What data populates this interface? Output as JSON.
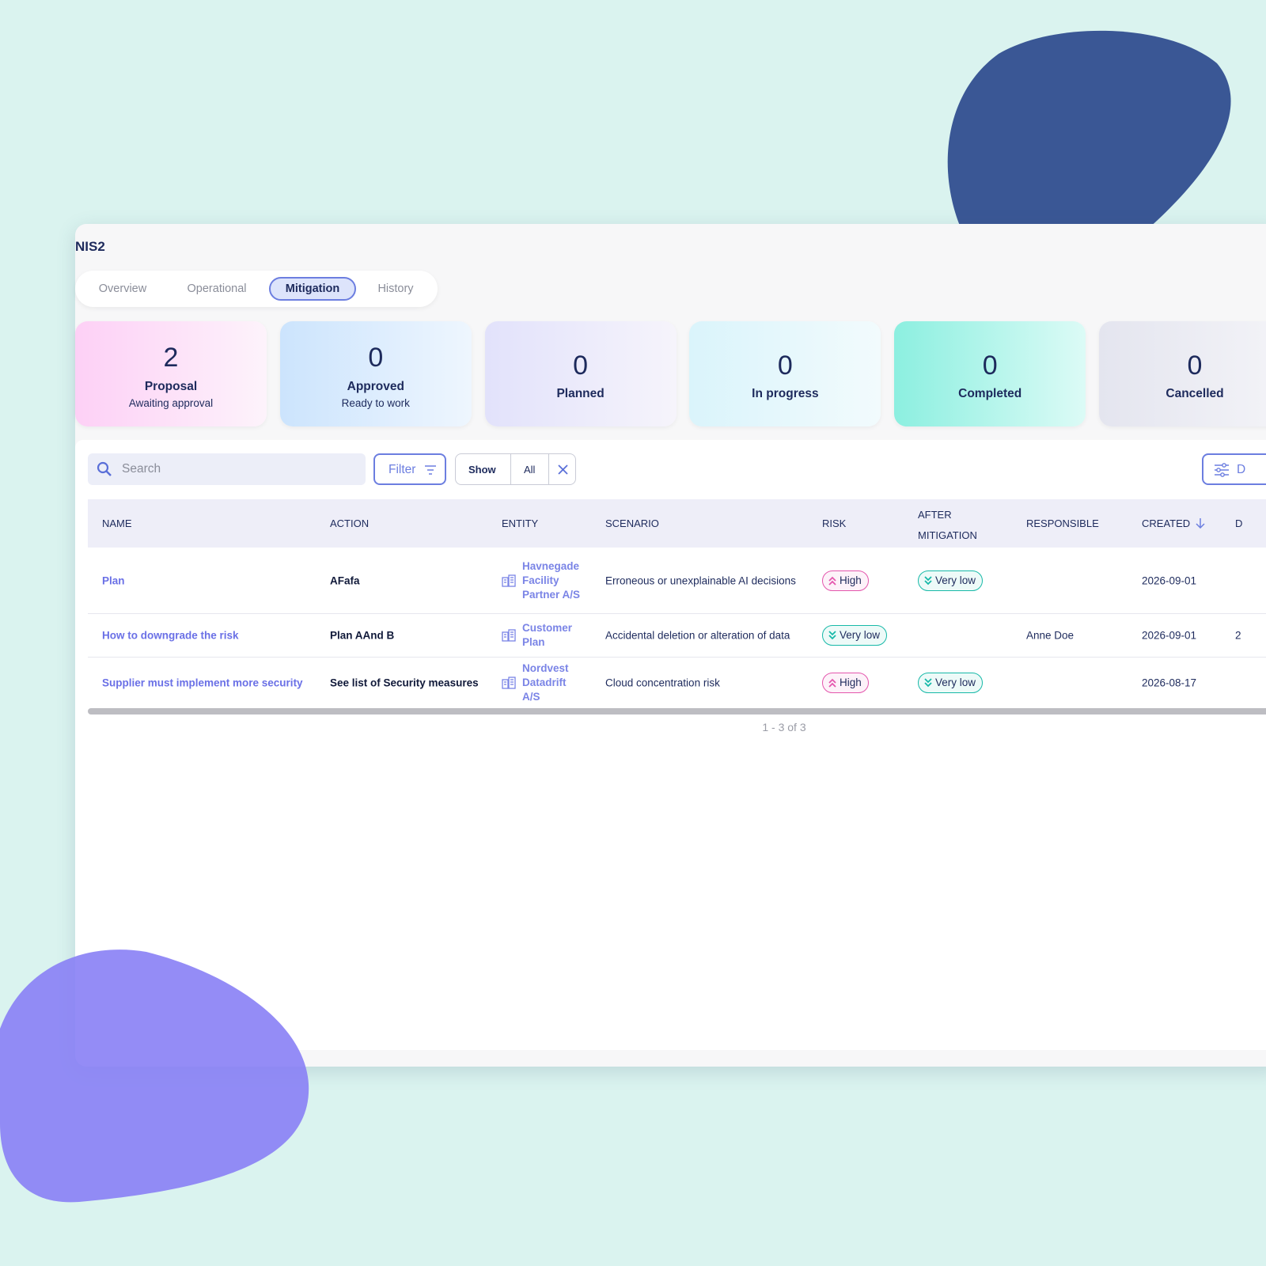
{
  "header": {
    "title": "NIS2"
  },
  "tabs": [
    "Overview",
    "Operational",
    "Mitigation",
    "History"
  ],
  "status_cards": [
    {
      "count": 2,
      "label": "Proposal",
      "sublabel": "Awaiting approval"
    },
    {
      "count": 0,
      "label": "Approved",
      "sublabel": "Ready to work"
    },
    {
      "count": 0,
      "label": "Planned"
    },
    {
      "count": 0,
      "label": "In progress"
    },
    {
      "count": 0,
      "label": "Completed"
    },
    {
      "count": 0,
      "label": "Cancelled"
    }
  ],
  "toolbar": {
    "search_placeholder": "Search",
    "filter": "Filter",
    "show": "Show",
    "show_value": "All",
    "view_button": "D"
  },
  "table": {
    "columns": [
      "NAME",
      "ACTION",
      "ENTITY",
      "SCENARIO",
      "RISK",
      "AFTER MITIGATION",
      "RESPONSIBLE",
      "CREATED",
      "D"
    ],
    "badge_colors": {
      "High": "#e456ad",
      "Very low": "#17b9a8"
    },
    "rows": [
      {
        "name": "Plan",
        "action": "AFafa",
        "entity": "Havnegade Facility Partner A/S",
        "scenario": "Erroneous or unexplainable AI decisions",
        "risk": "High",
        "after_mitigation": "Very low",
        "responsible": null,
        "created": "2026-09-01",
        "d": null
      },
      {
        "name": "How to downgrade the risk",
        "action": "Plan AAnd B",
        "entity": "Customer Plan",
        "scenario": "Accidental deletion or alteration of data",
        "risk": "Very low",
        "after_mitigation": null,
        "responsible": "Anne Doe",
        "created": "2026-09-01",
        "d": "2"
      },
      {
        "name": "Supplier must implement more security",
        "action": "See list of Security measures",
        "entity": "Nordvest Datadrift A/S",
        "scenario": "Cloud concentration risk",
        "risk": "High",
        "after_mitigation": "Very low",
        "responsible": null,
        "created": "2026-08-17",
        "d": null
      }
    ]
  },
  "pagination": "1 - 3 of 3"
}
